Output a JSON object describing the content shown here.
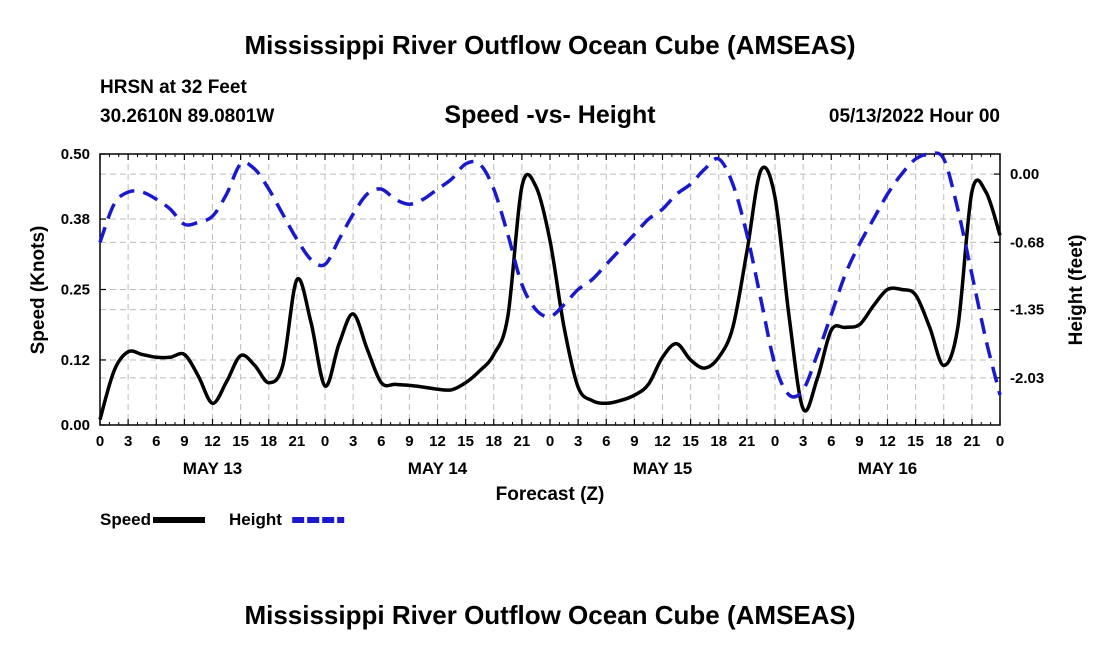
{
  "page": {
    "title": "Mississippi River Outflow Ocean Cube (AMSEAS)",
    "footer_title": "Mississippi River Outflow Ocean Cube (AMSEAS)",
    "station_line1": "HRSN at 32 Feet",
    "station_line2": "30.2610N  89.0801W",
    "chart_subtitle": "Speed -vs- Height",
    "date_label": "05/13/2022 Hour 00"
  },
  "chart_data": {
    "type": "line",
    "title": "Speed -vs- Height",
    "xlabel": "Forecast (Z)",
    "ylabel": "Speed (Knots)",
    "y2label": "Height (feet)",
    "x_hours": [
      0,
      96
    ],
    "ylim": [
      0,
      0.5
    ],
    "y2lim": [
      -2.5,
      0.2
    ],
    "y_ticks": [
      "0.00",
      "0.12",
      "0.25",
      "0.38",
      "0.50"
    ],
    "y2_ticks": [
      "-2.03",
      "-1.35",
      "-0.68",
      "0.00"
    ],
    "x_tick_labels": [
      "0",
      "3",
      "6",
      "9",
      "12",
      "15",
      "18",
      "21",
      "0",
      "3",
      "6",
      "9",
      "12",
      "15",
      "18",
      "21",
      "0",
      "3",
      "6",
      "9",
      "12",
      "15",
      "18",
      "21",
      "0",
      "3",
      "6",
      "9",
      "12",
      "15",
      "18",
      "21",
      "0"
    ],
    "day_labels": [
      "MAY 13",
      "MAY 14",
      "MAY 15",
      "MAY 16"
    ],
    "legend": [
      {
        "name": "Speed",
        "color": "#000000",
        "style": "solid"
      },
      {
        "name": "Height",
        "color": "#1a1acc",
        "style": "dashed"
      }
    ],
    "series": [
      {
        "name": "Speed",
        "axis": "left",
        "color": "#000000",
        "points": [
          [
            0,
            0.01
          ],
          [
            1.5,
            0.1
          ],
          [
            3,
            0.135
          ],
          [
            4.5,
            0.13
          ],
          [
            6,
            0.125
          ],
          [
            7.5,
            0.125
          ],
          [
            9,
            0.13
          ],
          [
            10.5,
            0.09
          ],
          [
            12,
            0.04
          ],
          [
            13.5,
            0.08
          ],
          [
            15,
            0.128
          ],
          [
            16.5,
            0.11
          ],
          [
            18,
            0.078
          ],
          [
            19.5,
            0.11
          ],
          [
            21,
            0.268
          ],
          [
            22.5,
            0.19
          ],
          [
            24,
            0.072
          ],
          [
            25.5,
            0.15
          ],
          [
            27,
            0.205
          ],
          [
            28.5,
            0.14
          ],
          [
            30,
            0.078
          ],
          [
            31.5,
            0.075
          ],
          [
            33,
            0.073
          ],
          [
            34.5,
            0.07
          ],
          [
            36,
            0.066
          ],
          [
            37.5,
            0.065
          ],
          [
            39,
            0.078
          ],
          [
            40.5,
            0.1
          ],
          [
            42,
            0.13
          ],
          [
            43.5,
            0.2
          ],
          [
            45,
            0.44
          ],
          [
            46.5,
            0.44
          ],
          [
            48,
            0.34
          ],
          [
            49.5,
            0.18
          ],
          [
            51,
            0.07
          ],
          [
            52.5,
            0.045
          ],
          [
            54,
            0.04
          ],
          [
            55.5,
            0.045
          ],
          [
            57,
            0.055
          ],
          [
            58.5,
            0.075
          ],
          [
            60,
            0.125
          ],
          [
            61.5,
            0.15
          ],
          [
            63,
            0.12
          ],
          [
            64.5,
            0.105
          ],
          [
            66,
            0.125
          ],
          [
            67.5,
            0.18
          ],
          [
            69,
            0.32
          ],
          [
            70.5,
            0.47
          ],
          [
            72,
            0.42
          ],
          [
            73.5,
            0.2
          ],
          [
            75,
            0.03
          ],
          [
            76.5,
            0.085
          ],
          [
            78,
            0.175
          ],
          [
            79.5,
            0.18
          ],
          [
            81,
            0.185
          ],
          [
            82.5,
            0.22
          ],
          [
            84,
            0.25
          ],
          [
            85.5,
            0.25
          ],
          [
            87,
            0.24
          ],
          [
            88.5,
            0.18
          ],
          [
            90,
            0.11
          ],
          [
            91.5,
            0.18
          ],
          [
            93,
            0.43
          ],
          [
            94.5,
            0.43
          ],
          [
            96,
            0.35
          ]
        ]
      },
      {
        "name": "Height",
        "axis": "right",
        "color": "#1a1acc",
        "points": [
          [
            0,
            -0.68
          ],
          [
            1.5,
            -0.3
          ],
          [
            3,
            -0.18
          ],
          [
            4.5,
            -0.18
          ],
          [
            6,
            -0.25
          ],
          [
            7.5,
            -0.35
          ],
          [
            9,
            -0.5
          ],
          [
            10.5,
            -0.48
          ],
          [
            12,
            -0.42
          ],
          [
            13.5,
            -0.2
          ],
          [
            15,
            0.1
          ],
          [
            16.5,
            0.05
          ],
          [
            18,
            -0.15
          ],
          [
            19.5,
            -0.4
          ],
          [
            21,
            -0.65
          ],
          [
            22.5,
            -0.85
          ],
          [
            24,
            -0.9
          ],
          [
            25.5,
            -0.65
          ],
          [
            27,
            -0.4
          ],
          [
            28.5,
            -0.2
          ],
          [
            30,
            -0.15
          ],
          [
            31.5,
            -0.25
          ],
          [
            33,
            -0.3
          ],
          [
            34.5,
            -0.25
          ],
          [
            36,
            -0.15
          ],
          [
            37.5,
            -0.05
          ],
          [
            39,
            0.1
          ],
          [
            40.5,
            0.1
          ],
          [
            42,
            -0.15
          ],
          [
            43.5,
            -0.6
          ],
          [
            45,
            -1.1
          ],
          [
            46.5,
            -1.35
          ],
          [
            48,
            -1.42
          ],
          [
            49.5,
            -1.3
          ],
          [
            51,
            -1.15
          ],
          [
            52.5,
            -1.05
          ],
          [
            54,
            -0.9
          ],
          [
            55.5,
            -0.75
          ],
          [
            57,
            -0.6
          ],
          [
            58.5,
            -0.45
          ],
          [
            60,
            -0.35
          ],
          [
            61.5,
            -0.2
          ],
          [
            63,
            -0.1
          ],
          [
            64.5,
            0.05
          ],
          [
            66,
            0.15
          ],
          [
            67.5,
            -0.1
          ],
          [
            69,
            -0.6
          ],
          [
            70.5,
            -1.25
          ],
          [
            72,
            -1.9
          ],
          [
            73.5,
            -2.2
          ],
          [
            75,
            -2.15
          ],
          [
            76.5,
            -1.8
          ],
          [
            78,
            -1.4
          ],
          [
            79.5,
            -1.0
          ],
          [
            81,
            -0.7
          ],
          [
            82.5,
            -0.45
          ],
          [
            84,
            -0.2
          ],
          [
            85.5,
            0.0
          ],
          [
            87,
            0.15
          ],
          [
            88.5,
            0.25
          ],
          [
            90,
            0.15
          ],
          [
            91.5,
            -0.35
          ],
          [
            93,
            -1.0
          ],
          [
            94.5,
            -1.65
          ],
          [
            96,
            -2.2
          ]
        ]
      }
    ]
  }
}
